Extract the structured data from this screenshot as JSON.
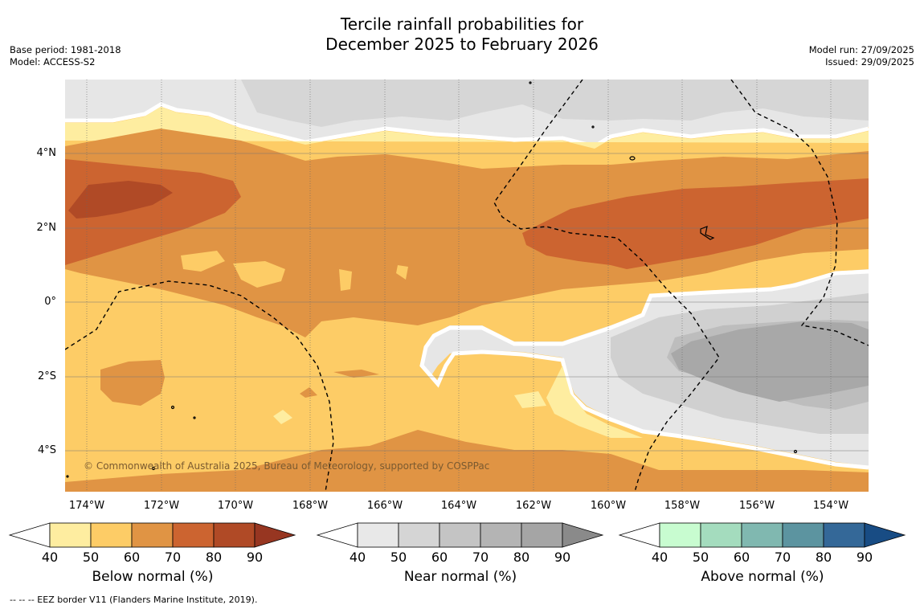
{
  "title": {
    "line1": "Tercile rainfall probabilities for",
    "line2": "December 2025 to February 2026"
  },
  "meta": {
    "base_period": "Base period: 1981-2018",
    "model": "Model: ACCESS-S2",
    "model_run": "Model run: 27/09/2025",
    "issued": "Issued: 29/09/2025"
  },
  "map": {
    "lat_labels": [
      "4°N",
      "2°N",
      "0°",
      "2°S",
      "4°S"
    ],
    "lon_labels": [
      "174°W",
      "172°W",
      "170°W",
      "168°W",
      "166°W",
      "164°W",
      "162°W",
      "160°W",
      "158°W",
      "156°W",
      "154°W"
    ],
    "copyright": "© Commonwealth of Australia 2025, Bureau of Meteorology, supported by COSPPac",
    "colors": {
      "below_50": "#feeda0",
      "below_60": "#fdcc66",
      "below_70": "#e09444",
      "below_80": "#cc6430",
      "below_90": "#b04a26",
      "near_50": "#e6e6e6",
      "near_60": "#d6d6d6",
      "near_70": "#c4c4c4",
      "near_80": "#b4b4b4",
      "near_90": "#a6a6a6"
    }
  },
  "colorbars": [
    {
      "title": "Below normal (%)",
      "ticks": [
        "40",
        "50",
        "60",
        "70",
        "80",
        "90"
      ],
      "colors": [
        "#ffffff",
        "#feeda0",
        "#fdcc66",
        "#e09444",
        "#cc6430",
        "#b04a26",
        "#973621"
      ]
    },
    {
      "title": "Near normal (%)",
      "ticks": [
        "40",
        "50",
        "60",
        "70",
        "80",
        "90"
      ],
      "colors": [
        "#ffffff",
        "#e8e8e8",
        "#d5d5d5",
        "#c4c4c4",
        "#b4b4b4",
        "#a5a5a5",
        "#8a8a8a"
      ]
    },
    {
      "title": "Above normal (%)",
      "ticks": [
        "40",
        "50",
        "60",
        "70",
        "80",
        "90"
      ],
      "colors": [
        "#ffffff",
        "#c8fcd0",
        "#a4dcbe",
        "#80b8b0",
        "#5c94a0",
        "#346898",
        "#184c84"
      ]
    }
  ],
  "footnote": "--  --  -- EEZ border V11 (Flanders Marine Institute, 2019)."
}
